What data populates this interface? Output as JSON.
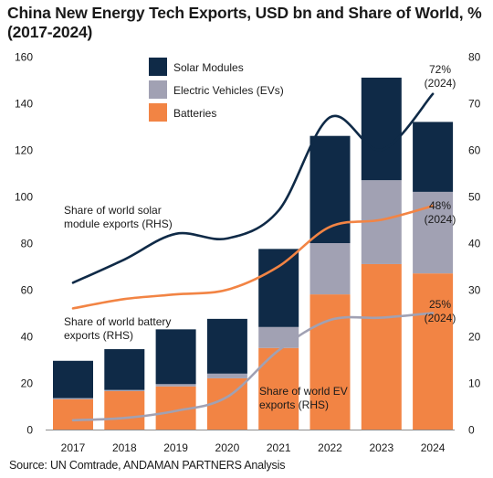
{
  "chart_data": {
    "type": "bar",
    "title": "China New Energy Tech Exports, USD bn and Share of World, % (2017-2024)",
    "source": "Source: UN Comtrade, ANDAMAN PARTNERS Analysis",
    "categories": [
      "2017",
      "2018",
      "2019",
      "2020",
      "2021",
      "2022",
      "2023",
      "2024"
    ],
    "left_axis": {
      "min": 0,
      "max": 160,
      "ticks": [
        "0",
        "20",
        "40",
        "60",
        "80",
        "100",
        "120",
        "140",
        "160"
      ]
    },
    "right_axis": {
      "min": 0,
      "max": 80,
      "ticks": [
        "0",
        "10",
        "20",
        "30",
        "40",
        "50",
        "60",
        "70",
        "80"
      ]
    },
    "bars": [
      {
        "name": "Batteries",
        "color": "#f28444",
        "values": [
          13,
          16.5,
          18.5,
          22,
          35,
          58,
          71,
          67
        ]
      },
      {
        "name": "Electric Vehicles (EVs)",
        "color": "#a1a1b3",
        "values": [
          0.5,
          0.5,
          1,
          2,
          9,
          22,
          36,
          35
        ]
      },
      {
        "name": "Solar Modules",
        "color": "#0f2a47",
        "values": [
          16,
          17.5,
          23.5,
          23.5,
          33.5,
          46,
          44,
          30
        ]
      }
    ],
    "lines": [
      {
        "label": "Share of world solar module exports (RHS)",
        "color": "#0f2a47",
        "width": 2.6,
        "values": [
          31.5,
          36.5,
          42,
          41,
          47,
          67,
          60,
          72
        ]
      },
      {
        "label": "Share of world battery exports (RHS)",
        "color": "#f28444",
        "width": 2.6,
        "values": [
          26,
          28,
          29,
          30,
          35,
          43.5,
          45,
          48
        ]
      },
      {
        "label": "Share of world EV exports (RHS)",
        "color": "#a1a1b3",
        "width": 2.6,
        "values": [
          2,
          2.5,
          4,
          7,
          17,
          23.5,
          24,
          25
        ]
      }
    ],
    "line_labels": [
      {
        "lines": [
          "Share of world solar",
          "module exports (RHS)"
        ]
      },
      {
        "lines": [
          "Share of world battery",
          "exports (RHS)"
        ]
      },
      {
        "lines": [
          "Share of world EV",
          "exports (RHS)"
        ]
      }
    ],
    "end_labels": [
      {
        "lines": [
          "72%",
          "(2024)"
        ]
      },
      {
        "lines": [
          "48%",
          "(2024)"
        ]
      },
      {
        "lines": [
          "25%",
          "(2024)"
        ]
      }
    ],
    "legend": [
      "Solar Modules",
      "Electric Vehicles (EVs)",
      "Batteries"
    ],
    "legend_position": "top-center"
  }
}
